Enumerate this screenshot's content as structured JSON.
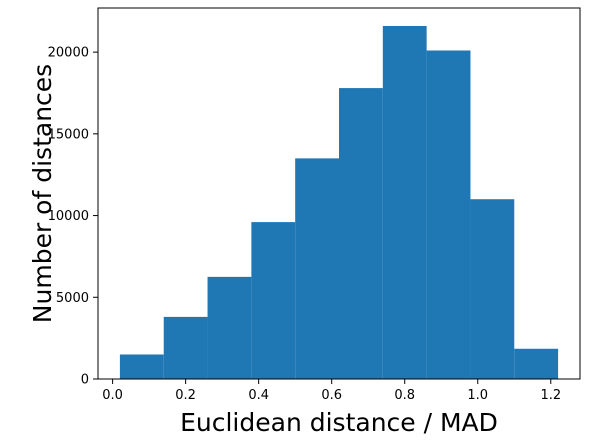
{
  "chart_data": {
    "type": "bar",
    "subtype": "histogram",
    "title": "",
    "xlabel": "Euclidean distance / MAD",
    "ylabel": "Number of distances",
    "bin_edges": [
      0.02,
      0.14,
      0.26,
      0.38,
      0.5,
      0.62,
      0.74,
      0.86,
      0.98,
      1.1,
      1.22
    ],
    "values": [
      1500,
      3800,
      6250,
      9600,
      13500,
      17800,
      21600,
      20100,
      11000,
      1850
    ],
    "xlim": [
      -0.04,
      1.28
    ],
    "ylim": [
      0,
      22700
    ],
    "xticks": [
      0.0,
      0.2,
      0.4,
      0.6,
      0.8,
      1.0,
      1.2
    ],
    "xtick_labels": [
      "0.0",
      "0.2",
      "0.4",
      "0.6",
      "0.8",
      "1.0",
      "1.2"
    ],
    "yticks": [
      0,
      5000,
      10000,
      15000,
      20000
    ],
    "ytick_labels": [
      "0",
      "5000",
      "10000",
      "15000",
      "20000"
    ],
    "bar_color": "#1f77b4",
    "grid": false,
    "legend": "none"
  }
}
